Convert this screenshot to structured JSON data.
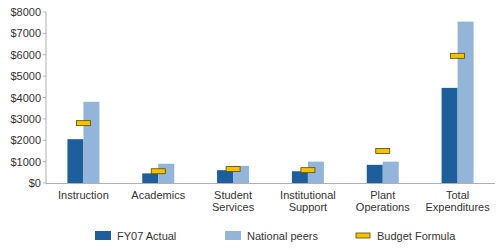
{
  "chart_data": {
    "type": "bar",
    "categories": [
      "Instruction",
      "Academics",
      "Student Services",
      "Institutional Support",
      "Plant Operations",
      "Total Expenditures"
    ],
    "series": [
      {
        "name": "FY07 Actual",
        "color": "#1c5f9c",
        "values": [
          2050,
          450,
          600,
          550,
          850,
          4450
        ]
      },
      {
        "name": "National peers",
        "color": "#93b5d9",
        "values": [
          3800,
          900,
          800,
          1000,
          1000,
          7550
        ]
      },
      {
        "name": "Budget Formula",
        "color": "#f3c300",
        "type": "scatter",
        "marker": "dash",
        "values": [
          2800,
          550,
          650,
          600,
          1500,
          5950
        ]
      }
    ],
    "ylim": [
      0,
      8000
    ],
    "yticks": [
      {
        "value": 0,
        "label": "$0"
      },
      {
        "value": 1000,
        "label": "$1000"
      },
      {
        "value": 2000,
        "label": "$2000"
      },
      {
        "value": 3000,
        "label": "$3000"
      },
      {
        "value": 4000,
        "label": "$4000"
      },
      {
        "value": 5000,
        "label": "$5000"
      },
      {
        "value": 6000,
        "label": "$6000"
      },
      {
        "value": 7000,
        "label": "$7000"
      },
      {
        "value": 8000,
        "label": "$8000"
      }
    ],
    "grid": false,
    "legend": "bottom"
  }
}
